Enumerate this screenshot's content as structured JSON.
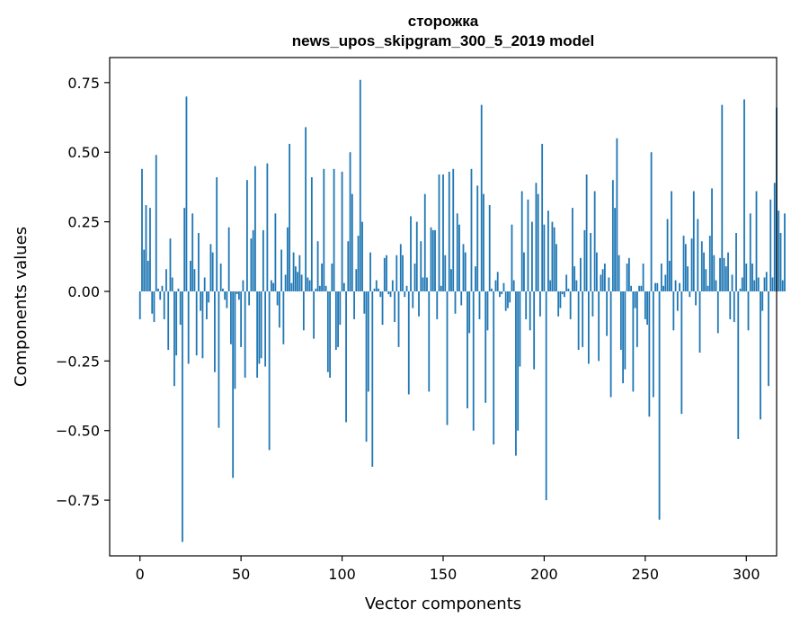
{
  "chart_data": {
    "type": "bar",
    "title": "сторожка",
    "subtitle": "news_upos_skipgram_300_5_2019 model",
    "xlabel": "Vector components",
    "ylabel": "Components values",
    "xlim": [
      -15,
      315
    ],
    "ylim": [
      -0.95,
      0.84
    ],
    "xticks": [
      0,
      50,
      100,
      150,
      200,
      250,
      300
    ],
    "xtick_labels": [
      "0",
      "50",
      "100",
      "150",
      "200",
      "250",
      "300"
    ],
    "yticks": [
      0.75,
      0.5,
      0.25,
      0.0,
      -0.25,
      -0.5,
      -0.75
    ],
    "ytick_labels": [
      "0.75",
      "0.50",
      "0.25",
      "0.00",
      "−0.25",
      "−0.50",
      "−0.75"
    ],
    "bar_color": "#1f77b4",
    "grid": false,
    "legend": "none",
    "values": [
      -0.1,
      0.44,
      0.15,
      0.31,
      0.11,
      0.3,
      -0.08,
      -0.11,
      0.49,
      0.01,
      -0.03,
      0.02,
      -0.1,
      0.08,
      -0.21,
      0.19,
      0.05,
      -0.34,
      -0.23,
      0.01,
      -0.12,
      -0.9,
      0.3,
      0.7,
      -0.26,
      0.11,
      0.28,
      0.08,
      -0.23,
      0.21,
      -0.07,
      -0.24,
      0.05,
      -0.1,
      -0.04,
      0.17,
      0.14,
      -0.29,
      0.41,
      -0.49,
      0.1,
      0.01,
      -0.03,
      -0.06,
      0.23,
      -0.19,
      -0.67,
      -0.35,
      -0.01,
      -0.03,
      -0.2,
      0.04,
      -0.31,
      0.4,
      -0.05,
      0.19,
      0.22,
      0.45,
      -0.31,
      -0.26,
      -0.24,
      0.22,
      -0.27,
      0.46,
      -0.57,
      0.04,
      0.03,
      0.28,
      -0.05,
      -0.13,
      0.15,
      -0.19,
      0.06,
      0.23,
      0.53,
      0.03,
      0.14,
      0.09,
      0.07,
      0.13,
      0.06,
      -0.14,
      0.59,
      0.05,
      0.04,
      0.41,
      -0.17,
      0.01,
      0.18,
      0.02,
      0.1,
      0.44,
      0.02,
      -0.29,
      -0.31,
      0.1,
      0.44,
      -0.21,
      -0.2,
      -0.12,
      0.43,
      0.03,
      -0.47,
      0.18,
      0.5,
      0.35,
      -0.1,
      0.08,
      0.2,
      0.76,
      0.25,
      -0.08,
      -0.54,
      -0.36,
      0.14,
      -0.63,
      0.01,
      0.04,
      0.01,
      -0.02,
      -0.12,
      0.12,
      0.13,
      -0.01,
      -0.02,
      0.04,
      -0.11,
      0.13,
      -0.2,
      0.17,
      0.13,
      -0.02,
      0.02,
      -0.37,
      0.27,
      -0.06,
      0.1,
      0.25,
      -0.09,
      0.18,
      0.05,
      0.35,
      0.05,
      -0.36,
      0.23,
      0.22,
      0.22,
      -0.1,
      0.42,
      0.02,
      0.42,
      0.13,
      -0.48,
      0.43,
      0.08,
      0.44,
      -0.08,
      0.28,
      0.24,
      -0.05,
      0.17,
      0.14,
      -0.42,
      -0.15,
      0.44,
      -0.5,
      0.09,
      0.38,
      -0.1,
      0.67,
      0.35,
      -0.4,
      -0.14,
      0.31,
      0.01,
      -0.55,
      0.04,
      0.07,
      -0.02,
      -0.01,
      0.03,
      -0.07,
      -0.06,
      -0.04,
      0.24,
      0.04,
      -0.59,
      -0.5,
      -0.27,
      0.36,
      0.14,
      -0.1,
      0.33,
      -0.14,
      0.25,
      -0.28,
      0.39,
      0.35,
      -0.09,
      0.53,
      0.24,
      -0.75,
      0.29,
      0.04,
      0.25,
      0.23,
      0.17,
      -0.09,
      -0.06,
      -0.01,
      -0.02,
      0.06,
      0.01,
      -0.1,
      0.3,
      0.09,
      0.04,
      -0.21,
      0.12,
      -0.2,
      0.22,
      0.42,
      -0.26,
      0.21,
      -0.09,
      0.36,
      0.14,
      -0.25,
      0.06,
      0.08,
      0.1,
      -0.16,
      0.05,
      -0.38,
      0.4,
      0.3,
      0.55,
      0.13,
      -0.21,
      -0.33,
      -0.28,
      0.1,
      0.12,
      0.02,
      -0.36,
      -0.06,
      -0.2,
      0.02,
      0.02,
      0.1,
      -0.1,
      -0.12,
      -0.45,
      0.5,
      -0.38,
      0.03,
      0.03,
      -0.82,
      0.1,
      0.02,
      0.06,
      0.26,
      0.11,
      0.36,
      -0.14,
      0.04,
      -0.07,
      0.03,
      -0.44,
      0.2,
      0.17,
      0.09,
      -0.02,
      0.19,
      0.36,
      -0.05,
      0.26,
      -0.22,
      0.18,
      0.14,
      0.08,
      0.02,
      0.2,
      0.37,
      0.13,
      0.04,
      -0.15,
      0.12,
      0.67,
      0.12,
      0.09,
      0.14,
      -0.1,
      0.06,
      -0.11,
      0.21,
      -0.53,
      0.01,
      0.05,
      0.69,
      0.1,
      -0.14,
      0.28,
      0.1,
      0.04,
      0.36,
      0.05,
      -0.46,
      -0.07,
      0.05,
      0.07,
      -0.34,
      0.33,
      0.05,
      0.39,
      0.66,
      0.29,
      0.21,
      0.04,
      0.28
    ]
  }
}
